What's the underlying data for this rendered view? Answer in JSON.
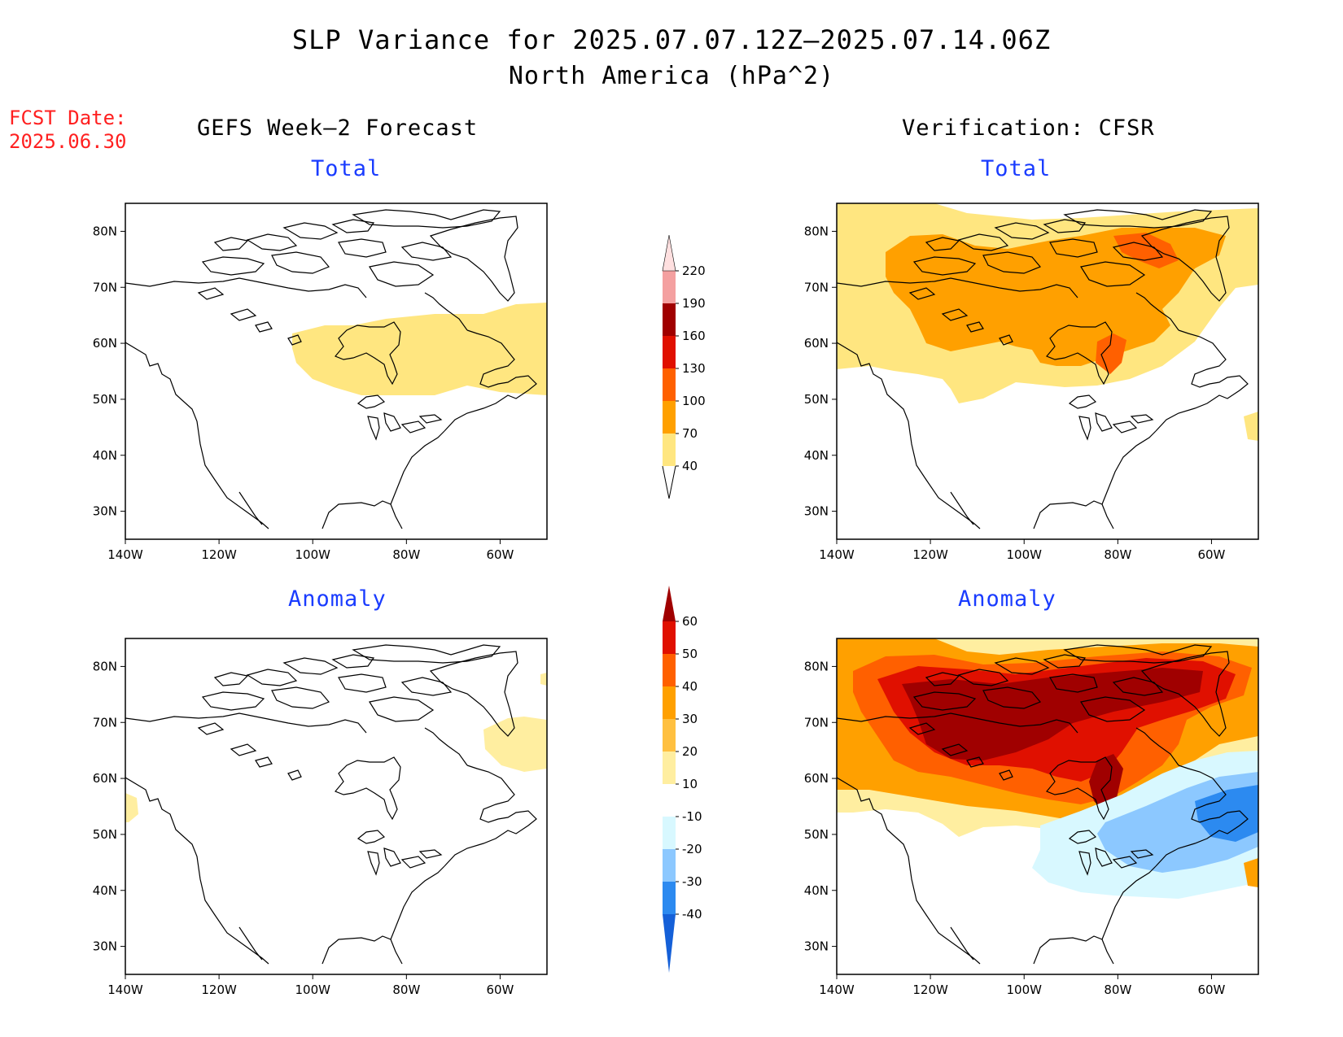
{
  "title": "SLP Variance for 2025.07.07.12Z–2025.07.14.06Z",
  "subtitle": "North America (hPa^2)",
  "fcst_date": {
    "label": "FCST Date:",
    "value": "2025.06.30"
  },
  "columns": {
    "left": "GEFS Week–2 Forecast",
    "right": "Verification: CFSR"
  },
  "panel_titles": {
    "total": "Total",
    "anomaly": "Anomaly"
  },
  "map": {
    "lon_range": [
      -140,
      -50
    ],
    "lat_range": [
      25,
      85
    ],
    "x_ticks": [
      {
        "lon": -140,
        "label": "140W"
      },
      {
        "lon": -120,
        "label": "120W"
      },
      {
        "lon": -100,
        "label": "100W"
      },
      {
        "lon": -80,
        "label": "80W"
      },
      {
        "lon": -60,
        "label": "60W"
      }
    ],
    "y_ticks": [
      {
        "lat": 80,
        "label": "80N"
      },
      {
        "lat": 70,
        "label": "70N"
      },
      {
        "lat": 60,
        "label": "60N"
      },
      {
        "lat": 50,
        "label": "50N"
      },
      {
        "lat": 40,
        "label": "40N"
      },
      {
        "lat": 30,
        "label": "30N"
      }
    ]
  },
  "colorbars": {
    "total": {
      "levels": [
        "40",
        "70",
        "100",
        "130",
        "160",
        "190",
        "220"
      ],
      "colors": [
        "#ffe680",
        "#ffa000",
        "#ff6000",
        "#e01000",
        "#a00000",
        "#f4a0a0",
        "#ffe0e0"
      ]
    },
    "anomaly": {
      "levels": [
        "-40",
        "-30",
        "-20",
        "-10",
        "10",
        "20",
        "30",
        "40",
        "50",
        "60"
      ],
      "colors": [
        "#1560d8",
        "#2c8af0",
        "#8cc8ff",
        "#d8f8ff",
        "#ffffff",
        "#ffeea0",
        "#ffc040",
        "#ffa000",
        "#ff6000",
        "#e01000",
        "#a00000"
      ]
    }
  },
  "colors": {
    "fcst_label": "#ff2020",
    "panel_title": "#1a3cff"
  }
}
